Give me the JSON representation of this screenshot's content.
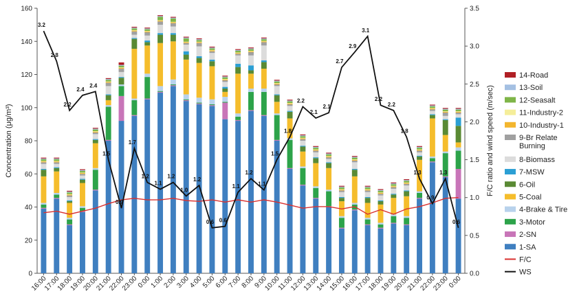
{
  "chart_data": {
    "type": "bar",
    "subtype": "stacked-bar-with-lines",
    "title": "",
    "ylabel": "Concentration (μg/m³)",
    "y2label": "F/C ratio and wind speed (m/sec)",
    "ylim": [
      0,
      160
    ],
    "y2lim": [
      0,
      3.5
    ],
    "yticks": [
      "0",
      "20",
      "40",
      "60",
      "80",
      "100",
      "120",
      "140",
      "160"
    ],
    "y2ticks": [
      "0.0",
      "0.5",
      "1.0",
      "1.5",
      "2.0",
      "2.5",
      "3.0",
      "3.5"
    ],
    "grid": false,
    "legend_position": "right",
    "categories": [
      "16:00",
      "17:00",
      "18:00",
      "19:00",
      "20:00",
      "21:00",
      "22:00",
      "23:00",
      "0:00",
      "1:00",
      "2:00",
      "3:00",
      "4:00",
      "5:00",
      "6:00",
      "7:00",
      "8:00",
      "9:00",
      "10:00",
      "11:00",
      "12:00",
      "13:00",
      "14:00",
      "15:00",
      "16:00",
      "17:00",
      "18:00",
      "19:00",
      "20:00",
      "21:00",
      "22:00",
      "23:00",
      "0:00"
    ],
    "series": [
      {
        "name": "1-SA",
        "color": "#3f7fc0",
        "values": [
          39,
          45,
          29,
          37,
          50,
          80,
          92,
          95,
          105,
          109,
          113,
          104,
          102,
          101,
          93,
          92,
          98,
          95,
          80,
          63,
          53,
          45,
          40,
          27,
          38,
          29,
          27,
          30,
          29,
          45,
          67,
          58,
          45
        ]
      },
      {
        "name": "2-SN",
        "color": "#c875b8",
        "values": [
          0.5,
          0.5,
          0.5,
          0.5,
          0.5,
          0.5,
          15,
          0.5,
          0.5,
          0.5,
          0.5,
          0.5,
          0.5,
          0.5,
          10,
          0.5,
          0.5,
          0.5,
          0.5,
          0.5,
          0.5,
          0.5,
          0.5,
          0.5,
          0.5,
          0.5,
          0.5,
          0.5,
          0.5,
          0.5,
          0.5,
          0.5,
          18
        ]
      },
      {
        "name": "3-Motor",
        "color": "#2da34a",
        "values": [
          2,
          2,
          3,
          2,
          12,
          20,
          6,
          9,
          13,
          0.5,
          0.5,
          0.5,
          0.5,
          0.5,
          0.5,
          2,
          11,
          14,
          15,
          17,
          10,
          6,
          9,
          6,
          3,
          3,
          2,
          4,
          4,
          3,
          2,
          14,
          11
        ]
      },
      {
        "name": "4-Brake & Tire",
        "color": "#b8d2ec",
        "values": [
          1,
          1,
          1,
          1,
          1,
          1,
          1,
          1,
          2,
          3,
          3,
          3,
          3,
          3,
          3,
          2,
          2,
          2,
          1,
          1,
          1,
          1,
          1,
          1,
          1,
          1,
          1,
          1,
          1,
          1,
          1,
          1,
          2
        ]
      },
      {
        "name": "5-Coal",
        "color": "#f5bd2c",
        "values": [
          16,
          13,
          9,
          14,
          15,
          3,
          0,
          30,
          17,
          26,
          23,
          21,
          21,
          20,
          3,
          24,
          9,
          12,
          7,
          12,
          9,
          14,
          13,
          9,
          16,
          9,
          11,
          10,
          12,
          19,
          23,
          10,
          3
        ]
      },
      {
        "name": "6-Oil",
        "color": "#5a8a34",
        "values": [
          4,
          2,
          1,
          2,
          2,
          3,
          4,
          6,
          2,
          5,
          4,
          3,
          3,
          3,
          2,
          4,
          2,
          4,
          4,
          4,
          3,
          3,
          3,
          2,
          4,
          3,
          2,
          2,
          3,
          2,
          2,
          9,
          10
        ]
      },
      {
        "name": "7-MSW",
        "color": "#2b9fd4",
        "values": [
          0.5,
          0.5,
          0.5,
          0.5,
          0.5,
          0.5,
          0.5,
          0.5,
          1,
          1,
          1,
          2,
          1,
          1,
          1,
          2,
          3,
          1,
          0.5,
          0.5,
          0.5,
          0.5,
          0.5,
          0.5,
          0.5,
          0.5,
          0.5,
          0.5,
          0.5,
          0.5,
          0.5,
          0.5,
          5
        ]
      },
      {
        "name": "8-Biomass",
        "color": "#dcdcdc",
        "values": [
          3,
          2,
          2,
          2,
          3,
          5,
          3,
          2,
          3,
          5,
          4,
          4,
          6,
          4,
          3,
          5,
          6,
          9,
          5,
          3,
          3,
          3,
          2,
          3,
          4,
          3,
          3,
          3,
          3,
          2,
          2,
          2,
          2
        ]
      },
      {
        "name": "9-Br Relate Burning",
        "color": "#a0a0a0",
        "values": [
          1,
          1,
          1,
          1,
          1,
          2,
          2,
          2,
          2,
          2,
          2,
          1,
          2,
          1,
          1,
          1,
          2,
          2,
          1,
          1,
          1,
          1,
          1,
          1,
          1,
          1,
          1,
          1,
          1,
          1,
          1,
          2,
          1
        ]
      },
      {
        "name": "10-Industry-1",
        "color": "#f3b62e",
        "values": [
          0.5,
          0.5,
          0.5,
          0.5,
          0.5,
          0.5,
          0.5,
          0.5,
          0.5,
          0.5,
          0.5,
          0.5,
          0.5,
          0.5,
          0.5,
          0.5,
          0.5,
          0.5,
          0.5,
          0.5,
          0.5,
          0.5,
          0.5,
          0.5,
          0.5,
          0.5,
          0.5,
          0.5,
          0.5,
          0.5,
          0.5,
          0.5,
          0.5
        ]
      },
      {
        "name": "11-Industry-2",
        "color": "#f5ee9a",
        "values": [
          0.3,
          0.3,
          0.3,
          0.3,
          0.3,
          0.3,
          0.3,
          0.3,
          0.3,
          0.3,
          0.3,
          0.3,
          0.3,
          0.3,
          0.3,
          0.3,
          0.3,
          0.3,
          0.3,
          0.3,
          0.3,
          0.3,
          0.3,
          0.3,
          0.3,
          0.3,
          0.3,
          0.3,
          0.3,
          0.3,
          0.3,
          0.3,
          0.3
        ]
      },
      {
        "name": "12-Seasalt",
        "color": "#7fb548",
        "values": [
          1,
          1,
          1,
          1,
          1,
          1,
          1,
          1,
          1,
          2,
          2,
          2,
          1,
          1,
          1,
          1,
          1,
          1,
          1,
          1,
          1,
          1,
          1,
          1,
          1,
          1,
          1,
          1,
          1,
          1,
          1,
          1,
          1
        ]
      },
      {
        "name": "13-Soil",
        "color": "#a4c0e2",
        "values": [
          0.5,
          0.5,
          0.5,
          0.5,
          0.5,
          0.5,
          0.5,
          0.5,
          0.5,
          0.5,
          0.5,
          0.5,
          0.5,
          0.5,
          0.5,
          0.5,
          0.5,
          0.5,
          0.5,
          0.5,
          0.5,
          0.5,
          0.5,
          0.5,
          0.5,
          0.5,
          0.5,
          0.5,
          0.5,
          0.5,
          0.5,
          0.5,
          0.5
        ]
      },
      {
        "name": "14-Road",
        "color": "#b02025",
        "values": [
          0.5,
          0.5,
          0.5,
          0.5,
          0.5,
          0.5,
          1.5,
          0.5,
          0.5,
          0.5,
          0.5,
          0.5,
          0.5,
          0.5,
          0.5,
          0.5,
          0.5,
          0.5,
          0.5,
          0.5,
          0.5,
          0.5,
          0.5,
          0.5,
          0.5,
          0.5,
          0.5,
          0.5,
          0.5,
          0.5,
          0.5,
          0.5,
          0.5
        ]
      }
    ],
    "lines": [
      {
        "name": "F/C",
        "color": "#d9302e",
        "axis": "secondary",
        "values": [
          0.8,
          0.82,
          0.78,
          0.82,
          0.86,
          0.92,
          0.97,
          0.99,
          0.97,
          0.97,
          0.99,
          0.96,
          0.95,
          0.97,
          0.94,
          0.97,
          0.94,
          0.97,
          0.94,
          0.9,
          0.86,
          0.88,
          0.88,
          0.85,
          0.88,
          0.78,
          0.84,
          0.78,
          0.85,
          0.88,
          0.93,
          0.99,
          1.0
        ]
      },
      {
        "name": "WS",
        "color": "#111111",
        "axis": "secondary",
        "values": [
          3.2,
          2.8,
          2.15,
          2.35,
          2.4,
          1.5,
          0.86,
          1.65,
          1.2,
          1.11,
          1.2,
          1.02,
          1.16,
          0.6,
          0.62,
          1.07,
          1.25,
          1.1,
          1.5,
          1.8,
          2.2,
          2.05,
          2.12,
          2.72,
          2.92,
          3.13,
          2.22,
          2.15,
          1.8,
          1.25,
          0.92,
          1.25,
          0.6
        ],
        "labels": [
          "3.2",
          "2.8",
          "2.2",
          "2.4",
          "2.4",
          "1.5",
          "0.9",
          "1.7",
          "1.2",
          "1.1",
          "1.2",
          "1.0",
          "1.2",
          "0.6",
          "0.6",
          "1.1",
          "1.2",
          "1.1",
          "1.5",
          "1.8",
          "2.2",
          "2.1",
          "2.1",
          "2.7",
          "2.9",
          "3.1",
          "2.2",
          "2.2",
          "1.8",
          "1.3",
          "0.9",
          "1.3",
          "0.6"
        ]
      }
    ],
    "legend_order": [
      "14-Road",
      "13-Soil",
      "12-Seasalt",
      "11-Industry-2",
      "10-Industry-1",
      "9-Br Relate\nBurning",
      "8-Biomass",
      "7-MSW",
      "6-Oil",
      "5-Coal",
      "4-Brake & Tire",
      "3-Motor",
      "2-SN",
      "1-SA",
      "F/C",
      "WS"
    ]
  }
}
